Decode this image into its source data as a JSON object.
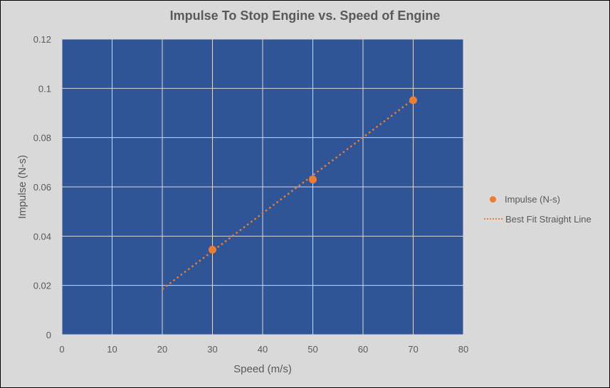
{
  "chart_data": {
    "type": "scatter",
    "title": "Impulse To Stop Engine vs. Speed of Engine",
    "xlabel": "Speed (m/s)",
    "ylabel": "Impulse (N-s)",
    "xlim": [
      0,
      80
    ],
    "ylim": [
      0,
      0.12
    ],
    "x_ticks": [
      "0",
      "10",
      "20",
      "30",
      "40",
      "50",
      "60",
      "70",
      "80"
    ],
    "y_ticks": [
      "0",
      "0.02",
      "0.04",
      "0.06",
      "0.08",
      "0.1",
      "0.12"
    ],
    "grid": true,
    "legend_position": "right",
    "series": [
      {
        "name": "Impulse (N-s)",
        "type": "scatter",
        "x": [
          30,
          50,
          70
        ],
        "y": [
          0.0345,
          0.063,
          0.0952
        ],
        "color": "#ed7d31"
      },
      {
        "name": "Best Fit Straight Line",
        "type": "line",
        "style": "dotted",
        "x": [
          20,
          70
        ],
        "y": [
          0.0185,
          0.0955
        ],
        "color": "#ed7d31"
      }
    ],
    "plot_background": "#2f5597"
  },
  "legend": {
    "items": [
      {
        "label": "Impulse (N-s)"
      },
      {
        "label": "Best Fit Straight Line"
      }
    ]
  }
}
